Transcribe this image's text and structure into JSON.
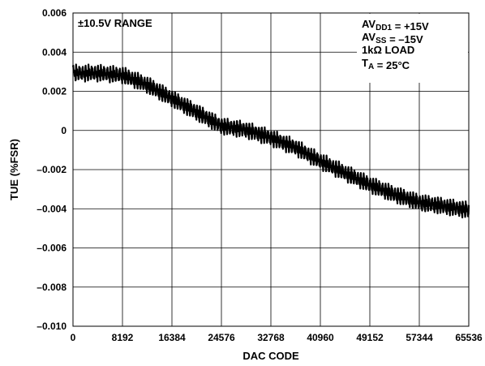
{
  "chart_data": {
    "type": "line",
    "xlabel": "DAC CODE",
    "ylabel": "TUE (%FSR)",
    "xlim": [
      0,
      65536
    ],
    "ylim": [
      -0.01,
      0.006
    ],
    "xticks": [
      0,
      8192,
      16384,
      24576,
      32768,
      40960,
      49152,
      57344,
      65536
    ],
    "xtick_labels": [
      "0",
      "8192",
      "16384",
      "24576",
      "32768",
      "40960",
      "49152",
      "57344",
      "65536"
    ],
    "yticks": [
      0.006,
      0.004,
      0.002,
      0,
      -0.002,
      -0.004,
      -0.006,
      -0.008,
      -0.01
    ],
    "ytick_labels": [
      "0.006",
      "0.004",
      "0.002",
      "0",
      "–0.002",
      "–0.004",
      "–0.006",
      "–0.008",
      "–0.010"
    ],
    "grid": true,
    "series": [
      {
        "x": [
          0,
          4096,
          8192,
          12288,
          16384,
          20480,
          24576,
          28672,
          32768,
          36864,
          40960,
          45056,
          49152,
          53248,
          57344,
          61440,
          65536
        ],
        "values": [
          0.0029,
          0.0029,
          0.0028,
          0.0023,
          0.0016,
          0.0009,
          0.0002,
          0.0,
          -0.0004,
          -0.0009,
          -0.0016,
          -0.0022,
          -0.0028,
          -0.0033,
          -0.0037,
          -0.0039,
          -0.0041
        ],
        "ripple": 0.0007,
        "color": "#000000"
      }
    ],
    "annotations": [
      {
        "id": "range",
        "text": "±10.5V RANGE",
        "position": "top-left"
      },
      {
        "id": "avdd",
        "parts": [
          {
            "t": "AV"
          },
          {
            "t": "DD1",
            "sub": true
          },
          {
            "t": " = +15V"
          }
        ],
        "position": "top-right"
      },
      {
        "id": "avss",
        "parts": [
          {
            "t": "AV"
          },
          {
            "t": "SS",
            "sub": true
          },
          {
            "t": " = –15V"
          }
        ],
        "position": "top-right"
      },
      {
        "id": "load",
        "parts": [
          {
            "t": "1kΩ LOAD"
          }
        ],
        "position": "top-right"
      },
      {
        "id": "temp",
        "parts": [
          {
            "t": "T"
          },
          {
            "t": "A",
            "sub": true
          },
          {
            "t": " = 25°C"
          }
        ],
        "position": "top-right"
      }
    ]
  }
}
